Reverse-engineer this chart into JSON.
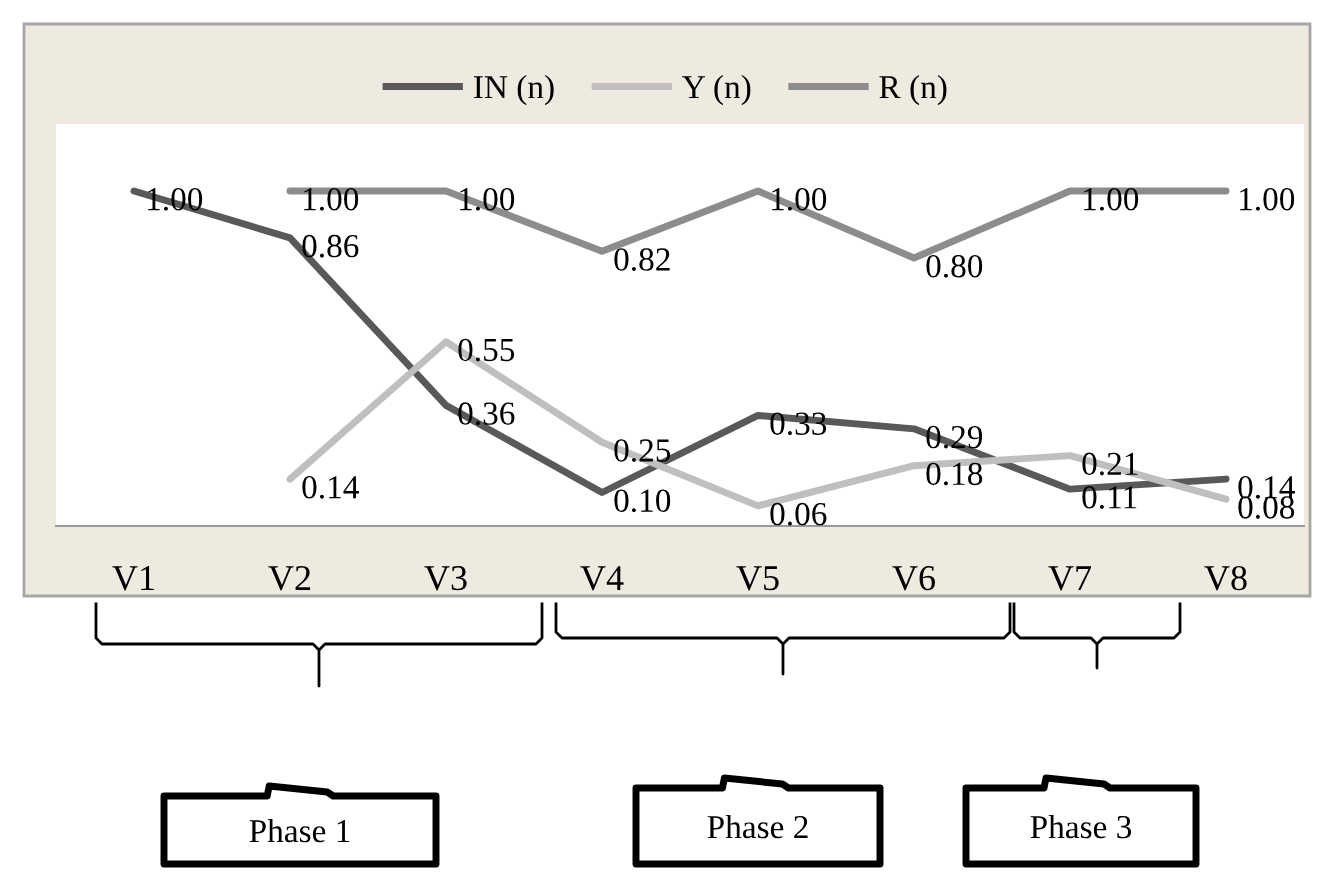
{
  "chart_data": {
    "type": "line",
    "categories": [
      "V1",
      "V2",
      "V3",
      "V4",
      "V5",
      "V6",
      "V7",
      "V8"
    ],
    "series": [
      {
        "name": "IN (n)",
        "color": "#595959",
        "values": [
          1.0,
          0.86,
          0.36,
          0.1,
          0.33,
          0.29,
          0.11,
          0.14
        ],
        "value_labels": [
          "1.00",
          "0.86",
          "0.36",
          "0.10",
          "0.33",
          "0.29",
          "0.11",
          "0.14"
        ]
      },
      {
        "name": "Y (n)",
        "color": "#bfbfbf",
        "values": [
          null,
          0.14,
          0.55,
          0.25,
          0.06,
          0.18,
          0.21,
          0.08
        ],
        "value_labels": [
          null,
          "0.14",
          "0.55",
          "0.25",
          "0.06",
          "0.18",
          "0.21",
          "0.08"
        ]
      },
      {
        "name": "R (n)",
        "color": "#8c8c8c",
        "values": [
          null,
          1.0,
          1.0,
          0.82,
          1.0,
          0.8,
          1.0,
          1.0
        ],
        "value_labels": [
          null,
          "1.00",
          "1.00",
          "0.82",
          "1.00",
          "0.80",
          "1.00",
          "1.00"
        ]
      }
    ],
    "ylim": [
      0,
      1.2
    ],
    "tick_labels": "x",
    "grid": false,
    "legend": "top",
    "marker": "none",
    "line_style": "solid",
    "annotations": [
      "Phase 1",
      "Phase 2",
      "Phase 3"
    ]
  }
}
